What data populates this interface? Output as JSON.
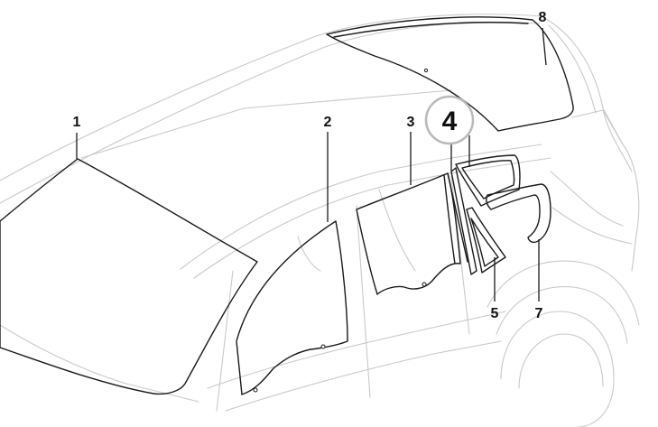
{
  "diagram": {
    "callouts": {
      "windscreen": "1",
      "front_door_glass": "2",
      "rear_door_glass": "3",
      "highlighted_part": "4",
      "fixed_quarter_glass": "5",
      "side_window_seal": "7",
      "rear_window": "8"
    },
    "colors": {
      "outline": "#1a1a1a",
      "ghost_body": "#c9c9c9",
      "highlight_ring": "#b9b9b9",
      "background": "#ffffff"
    }
  }
}
